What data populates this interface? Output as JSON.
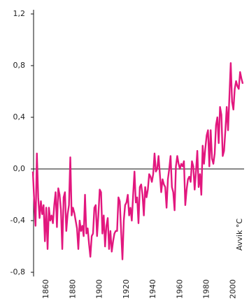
{
  "chart_data": {
    "type": "line",
    "y_label": "Avvik °C",
    "color": "#e2177e",
    "xlim": [
      1850,
      2008
    ],
    "xticks": [
      1860,
      1880,
      1900,
      1920,
      1940,
      1960,
      1980,
      2000
    ],
    "ylim": [
      -0.8,
      1.2
    ],
    "yticks": [
      {
        "value": -0.8,
        "label": "-0,8"
      },
      {
        "value": -0.4,
        "label": "-0,4"
      },
      {
        "value": 0,
        "label": "0,0"
      },
      {
        "value": 0.4,
        "label": "0,4"
      },
      {
        "value": 0.8,
        "label": "0,8"
      },
      {
        "value": 1.2,
        "label": "1,2"
      }
    ],
    "x": [
      1850,
      1851,
      1852,
      1853,
      1854,
      1855,
      1856,
      1857,
      1858,
      1859,
      1860,
      1861,
      1862,
      1863,
      1864,
      1865,
      1866,
      1867,
      1868,
      1869,
      1870,
      1871,
      1872,
      1873,
      1874,
      1875,
      1876,
      1877,
      1878,
      1879,
      1880,
      1881,
      1882,
      1883,
      1884,
      1885,
      1886,
      1887,
      1888,
      1889,
      1890,
      1891,
      1892,
      1893,
      1894,
      1895,
      1896,
      1897,
      1898,
      1899,
      1900,
      1901,
      1902,
      1903,
      1904,
      1905,
      1906,
      1907,
      1908,
      1909,
      1910,
      1911,
      1912,
      1913,
      1914,
      1915,
      1916,
      1917,
      1918,
      1919,
      1920,
      1921,
      1922,
      1923,
      1924,
      1925,
      1926,
      1927,
      1928,
      1929,
      1930,
      1931,
      1932,
      1933,
      1934,
      1935,
      1936,
      1937,
      1938,
      1939,
      1940,
      1941,
      1942,
      1943,
      1944,
      1945,
      1946,
      1947,
      1948,
      1949,
      1950,
      1951,
      1952,
      1953,
      1954,
      1955,
      1956,
      1957,
      1958,
      1959,
      1960,
      1961,
      1962,
      1963,
      1964,
      1965,
      1966,
      1967,
      1968,
      1969,
      1970,
      1971,
      1972,
      1973,
      1974,
      1975,
      1976,
      1977,
      1978,
      1979,
      1980,
      1981,
      1982,
      1983,
      1984,
      1985,
      1986,
      1987,
      1988,
      1989,
      1990,
      1991,
      1992,
      1993,
      1994,
      1995,
      1996,
      1997,
      1998,
      1999,
      2000,
      2001,
      2002,
      2003,
      2004,
      2005,
      2006,
      2007
    ],
    "values": [
      -0.02,
      -0.25,
      -0.44,
      0.12,
      -0.22,
      -0.38,
      -0.25,
      -0.35,
      -0.28,
      -0.56,
      -0.3,
      -0.62,
      -0.3,
      -0.4,
      -0.36,
      -0.42,
      -0.28,
      -0.18,
      -0.45,
      -0.15,
      -0.2,
      -0.32,
      -0.62,
      -0.22,
      -0.18,
      -0.48,
      -0.35,
      -0.28,
      0.09,
      -0.36,
      -0.3,
      -0.34,
      -0.4,
      -0.46,
      -0.62,
      -0.4,
      -0.48,
      -0.44,
      -0.52,
      -0.2,
      -0.5,
      -0.46,
      -0.58,
      -0.68,
      -0.52,
      -0.5,
      -0.3,
      -0.28,
      -0.52,
      -0.36,
      -0.16,
      -0.18,
      -0.5,
      -0.36,
      -0.6,
      -0.44,
      -0.38,
      -0.62,
      -0.48,
      -0.64,
      -0.56,
      -0.5,
      -0.48,
      -0.48,
      -0.22,
      -0.25,
      -0.48,
      -0.7,
      -0.4,
      -0.28,
      -0.26,
      -0.2,
      -0.36,
      -0.3,
      -0.4,
      -0.2,
      -0.02,
      -0.26,
      -0.22,
      -0.42,
      -0.14,
      -0.12,
      -0.2,
      -0.36,
      -0.14,
      -0.22,
      -0.16,
      -0.04,
      -0.06,
      -0.1,
      -0.04,
      0.12,
      -0.02,
      0.0,
      0.1,
      -0.04,
      -0.18,
      -0.08,
      -0.12,
      -0.14,
      -0.3,
      -0.08,
      0.0,
      0.1,
      -0.14,
      -0.18,
      -0.32,
      0.02,
      0.1,
      0.04,
      0.0,
      0.04,
      0.02,
      0.06,
      -0.28,
      -0.16,
      -0.08,
      -0.06,
      -0.1,
      0.06,
      0.02,
      -0.16,
      -0.02,
      0.14,
      -0.14,
      -0.04,
      -0.2,
      0.18,
      0.04,
      0.16,
      0.26,
      0.3,
      0.02,
      0.3,
      0.08,
      0.04,
      0.12,
      0.34,
      0.4,
      0.2,
      0.48,
      0.42,
      0.1,
      0.14,
      0.3,
      0.48,
      0.3,
      0.56,
      0.82,
      0.52,
      0.46,
      0.62,
      0.68,
      0.64,
      0.62,
      0.75,
      0.7,
      0.66
    ]
  }
}
